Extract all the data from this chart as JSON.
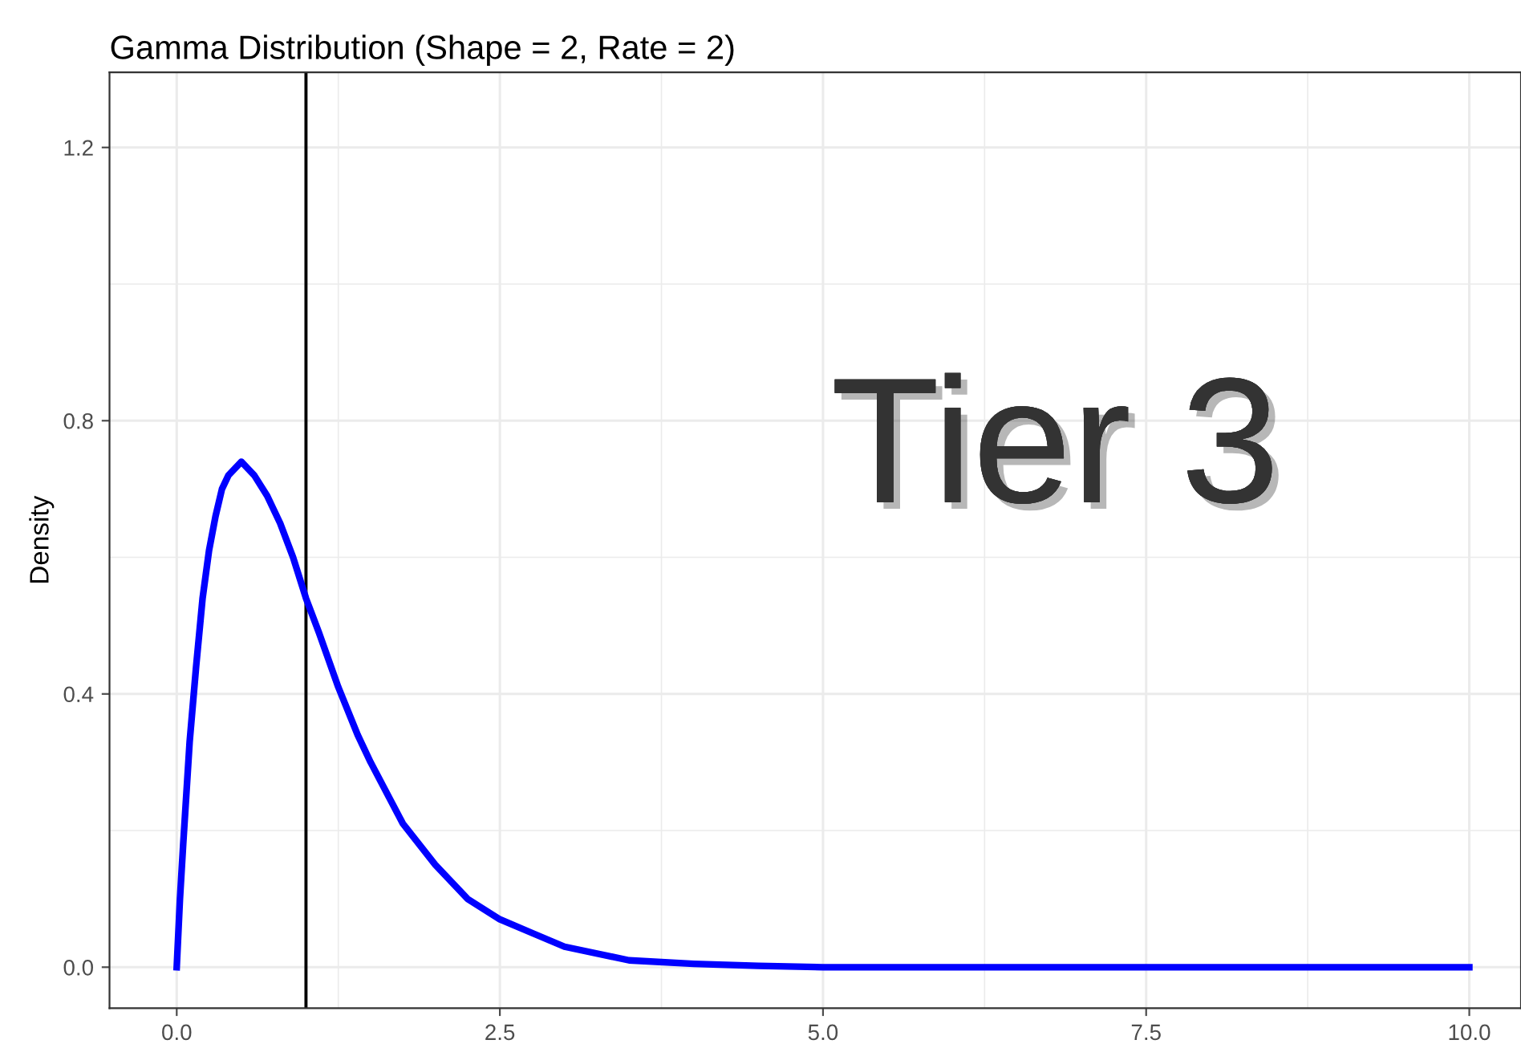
{
  "chart_data": {
    "type": "line",
    "title": "Gamma Distribution (Shape = 2, Rate = 2)",
    "ylabel": "Density",
    "series": [
      {
        "color": "#0000ff",
        "x": [
          0,
          0.025,
          0.05,
          0.1,
          0.15,
          0.2,
          0.25,
          0.3,
          0.35,
          0.4,
          0.45,
          0.5,
          0.55,
          0.6,
          0.7,
          0.8,
          0.9,
          1,
          1.1,
          1.25,
          1.4,
          1.5,
          1.75,
          2,
          2.25,
          2.5,
          2.75,
          3,
          3.5,
          4,
          4.5,
          5,
          6,
          8,
          10
        ],
        "values": [
          0,
          0.1,
          0.18,
          0.33,
          0.44,
          0.54,
          0.61,
          0.66,
          0.7,
          0.72,
          0.73,
          0.74,
          0.73,
          0.72,
          0.69,
          0.65,
          0.6,
          0.54,
          0.49,
          0.41,
          0.34,
          0.3,
          0.21,
          0.15,
          0.1,
          0.07,
          0.05,
          0.03,
          0.01,
          0.005,
          0.002,
          0,
          0,
          0,
          0
        ]
      }
    ],
    "xlim": [
      -0.52,
      10.4
    ],
    "xticks": [
      {
        "value": 0,
        "label": "0.0"
      },
      2.5,
      {
        "value": 5,
        "label": "5.0"
      },
      7.5,
      {
        "value": 10,
        "label": "10.0"
      }
    ],
    "ylim": [
      -0.06,
      1.31
    ],
    "yticks": [
      {
        "value": 0,
        "label": "0.0"
      },
      0.4,
      0.8,
      1.2
    ],
    "ref_lines": [
      {
        "axis": "x",
        "value": 1,
        "color": "#000000"
      }
    ],
    "annotations": [
      "Tier 3"
    ],
    "grid": true,
    "marker": "none",
    "line_style": "solid",
    "legend": false
  }
}
